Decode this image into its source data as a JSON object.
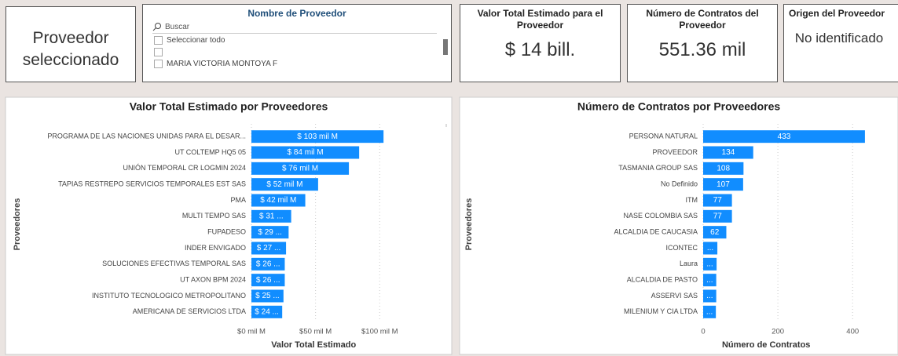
{
  "selected_card": {
    "text": "Proveedor seleccionado"
  },
  "slicer": {
    "title": "Nombre de Proveedor",
    "search": "Buscar",
    "items": [
      "Seleccionar todo",
      "MARIA VICTORIA MONTOYA F"
    ]
  },
  "cards": [
    {
      "title": "Valor Total Estimado para el Proveedor",
      "value": "$ 14 bill."
    },
    {
      "title": "Número de Contratos del Proveedor",
      "value": "551.36 mil"
    },
    {
      "title": "Origen del Proveedor",
      "value": "No identificado"
    }
  ],
  "chart_data": [
    {
      "type": "hbar",
      "title": "Valor Total Estimado por Proveedores",
      "x_label": "Valor Total Estimado",
      "y_label": "Proveedores",
      "color": "#118dff",
      "grid": true,
      "categories": [
        "PROGRAMA DE LAS NACIONES UNIDAS PARA EL DESAR...",
        "UT COLTEMP HQ5 05",
        "UNIÓN TEMPORAL CR LOGMIN 2024",
        "TAPIAS RESTREPO SERVICIOS TEMPORALES EST SAS",
        "PMA",
        "MULTI TEMPO SAS",
        "FUPADESO",
        "INDER ENVIGADO",
        "SOLUCIONES EFECTIVAS TEMPORAL SAS",
        "UT AXON BPM 2024",
        "INSTITUTO TECNOLOGICO METROPOLITANO",
        "AMERICANA DE SERVICIOS LTDA"
      ],
      "values": [
        103,
        84,
        76,
        52,
        42,
        31,
        29,
        27,
        26,
        26,
        25,
        24
      ],
      "value_labels": [
        "$ 103 mil M",
        "$ 84 mil M",
        "$ 76 mil M",
        "$ 52 mil M",
        "$ 42 mil M",
        "$ 31 ...",
        "$ 29 ...",
        "$ 27 ...",
        "$ 26 ...",
        "$ 26 ...",
        "$ 25 ...",
        "$ 24 ..."
      ],
      "xlim": [
        0,
        147
      ],
      "xticks": [
        {
          "value": 0,
          "label": "$0 mil M"
        },
        {
          "value": 50,
          "label": "$50 mil M"
        },
        {
          "value": 100,
          "label": "$100 mil M"
        }
      ]
    },
    {
      "type": "hbar",
      "title": "Número de Contratos por Proveedores",
      "x_label": "Número de Contratos",
      "y_label": "Proveedores",
      "color": "#118dff",
      "grid": true,
      "categories": [
        "PERSONA NATURAL",
        "PROVEEDOR",
        "TASMANIA GROUP SAS",
        "No Definido",
        "ITM",
        "NASE COLOMBIA SAS",
        "ALCALDIA DE CAUCASIA",
        "ICONTEC",
        "Laura",
        "ALCALDIA DE PASTO",
        "ASSERVI SAS",
        "MILENIUM Y CIA LTDA"
      ],
      "values": [
        433,
        134,
        108,
        107,
        77,
        77,
        62,
        38,
        36,
        35,
        35,
        34
      ],
      "value_labels": [
        "433",
        "134",
        "108",
        "107",
        "77",
        "77",
        "62",
        "...",
        "...",
        "...",
        "...",
        "..."
      ],
      "xlim": [
        0,
        511
      ],
      "xticks": [
        0,
        200,
        400
      ]
    }
  ]
}
